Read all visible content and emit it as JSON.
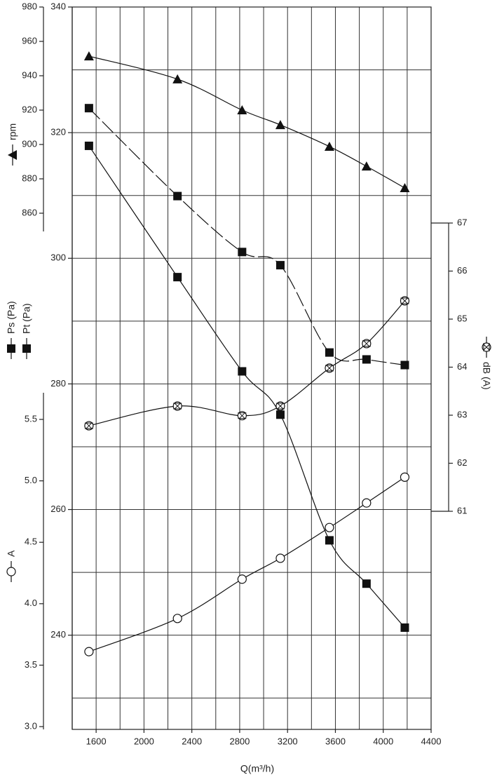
{
  "chart_data": {
    "type": "line",
    "x_label": "Q(m³/h)",
    "x": [
      1540,
      2280,
      2820,
      3140,
      3550,
      3860,
      4180
    ],
    "xlim": [
      1400,
      4400
    ],
    "xticks": [
      1600,
      2000,
      2400,
      2800,
      3200,
      3600,
      4000,
      4400
    ],
    "x_minor_ticks": [
      1800,
      2200,
      2600,
      3000,
      3400,
      3800,
      4200
    ],
    "grid": true,
    "ylim": [
      225,
      340
    ],
    "yticks": [
      240,
      260,
      280,
      300,
      320,
      340
    ],
    "y_minor_ticks": [
      230,
      250,
      270,
      290,
      310,
      330
    ],
    "rpm_axis": {
      "lim": [
        860,
        980
      ],
      "ticks": [
        860,
        880,
        900,
        920,
        940,
        960,
        980
      ]
    },
    "current_axis": {
      "lim": [
        3,
        5.5
      ],
      "ticks": [
        {
          "value": 3,
          "label": "3.0"
        },
        3.5,
        {
          "value": 4,
          "label": "4.0"
        },
        4.5,
        {
          "value": 5,
          "label": "5.0"
        },
        5.5
      ]
    },
    "sound_axis": {
      "lim": [
        61,
        67
      ],
      "ticks": [
        61,
        62,
        63,
        64,
        65,
        66,
        67
      ]
    },
    "series": [
      {
        "name": "rpm",
        "axis": "rpm",
        "marker": "triangle",
        "color": "#111",
        "values": [
          951.4,
          938.0,
          920.0,
          911.4,
          898.8,
          887.3,
          874.7
        ]
      },
      {
        "name": "Pt (Pa)",
        "axis": "y",
        "marker": "square",
        "dashed": true,
        "color": "#111",
        "values": [
          323.9,
          309.9,
          301.0,
          298.9,
          285.0,
          283.9,
          283.0
        ]
      },
      {
        "name": "Ps (Pa)",
        "axis": "y",
        "marker": "square",
        "color": "#111",
        "values": [
          317.9,
          297.0,
          282.0,
          275.1,
          255.1,
          248.2,
          241.2
        ]
      },
      {
        "name": "dB (A)",
        "axis": "sound",
        "marker": "xcircle",
        "color": "#111",
        "values": [
          62.78,
          63.19,
          62.99,
          63.19,
          63.98,
          64.49,
          65.38
        ]
      },
      {
        "name": "A",
        "axis": "current",
        "marker": "circle",
        "color": "#111",
        "values": [
          3.61,
          3.88,
          4.2,
          4.37,
          4.62,
          4.82,
          5.03
        ]
      }
    ]
  }
}
